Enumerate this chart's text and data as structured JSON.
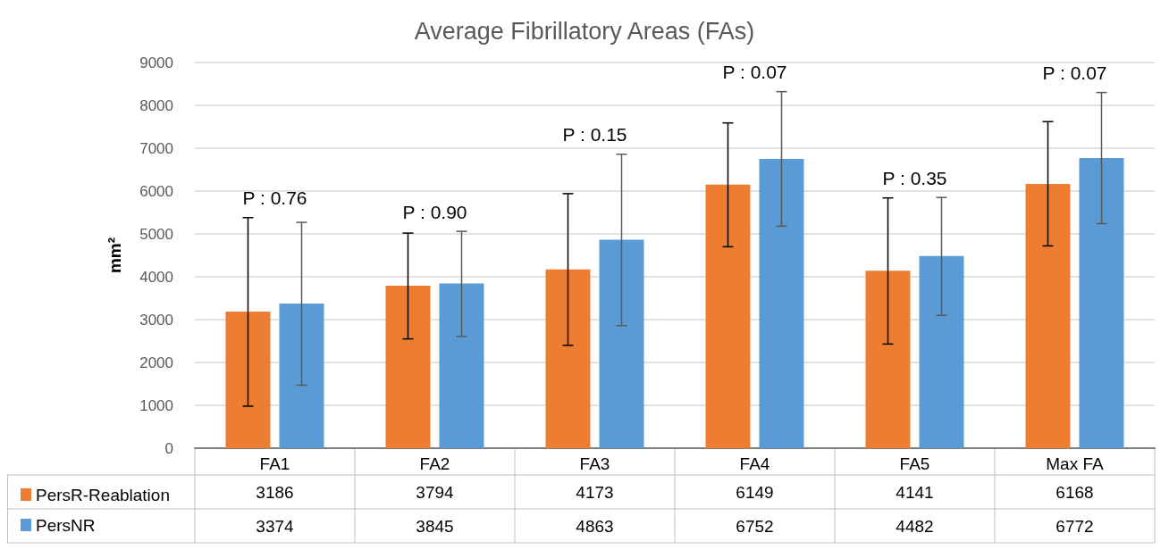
{
  "chart_data": {
    "type": "bar",
    "title": "Average Fibrillatory Areas (FAs)",
    "ylabel": "mm²",
    "categories": [
      "FA1",
      "FA2",
      "FA3",
      "FA4",
      "FA5",
      "Max FA"
    ],
    "series": [
      {
        "name": "PersR-Reablation",
        "color": "#ed7d31",
        "values": [
          3186,
          3794,
          4173,
          6149,
          4141,
          6168
        ],
        "errors": [
          [
            980,
            5380
          ],
          [
            2550,
            5020
          ],
          [
            2400,
            5940
          ],
          [
            4700,
            7590
          ],
          [
            2430,
            5840
          ],
          [
            4720,
            7620
          ]
        ]
      },
      {
        "name": "PersNR",
        "color": "#5b9bd5",
        "values": [
          3374,
          3845,
          4863,
          6752,
          4482,
          6772
        ],
        "errors": [
          [
            1470,
            5270
          ],
          [
            2610,
            5060
          ],
          [
            2860,
            6860
          ],
          [
            5180,
            8320
          ],
          [
            3100,
            5850
          ],
          [
            5240,
            8300
          ]
        ]
      }
    ],
    "ylim": [
      0,
      9000
    ],
    "yticks": [
      0,
      1000,
      2000,
      3000,
      4000,
      5000,
      6000,
      7000,
      8000,
      9000
    ],
    "grid": "y",
    "legend": "bottom left",
    "data_labels": true,
    "annotations": [
      "P : 0.76",
      "P : 0.90",
      "P : 0.15",
      "P : 0.07",
      "P : 0.35",
      "P : 0.07"
    ]
  }
}
